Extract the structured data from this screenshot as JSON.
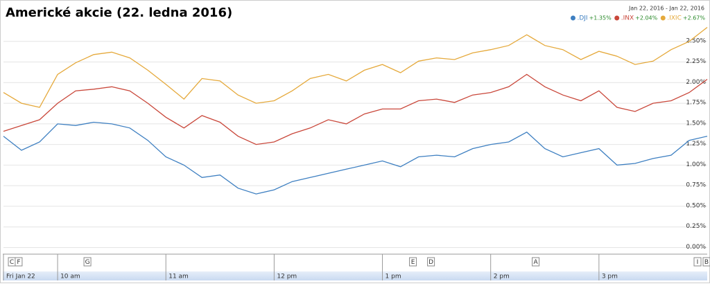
{
  "chart_data": {
    "type": "line",
    "title": "Americké akcie (22. ledna 2016)",
    "date_range": "Jan 22, 2016  -  Jan 22, 2016",
    "x": [
      570,
      580,
      590,
      600,
      610,
      620,
      630,
      640,
      650,
      660,
      670,
      680,
      690,
      700,
      710,
      720,
      730,
      740,
      750,
      760,
      770,
      780,
      790,
      800,
      810,
      820,
      830,
      840,
      850,
      860,
      870,
      880,
      890,
      900,
      910,
      920,
      930,
      940,
      950,
      960
    ],
    "xlim": [
      570,
      960
    ],
    "xticks": [
      {
        "value": 570,
        "label": "Fri Jan 22"
      },
      {
        "value": 600,
        "label": "10 am"
      },
      {
        "value": 660,
        "label": "11 am"
      },
      {
        "value": 720,
        "label": "12 pm"
      },
      {
        "value": 780,
        "label": "1 pm"
      },
      {
        "value": 840,
        "label": "2 pm"
      },
      {
        "value": 900,
        "label": "3 pm"
      }
    ],
    "ylim": [
      -0.08,
      2.75
    ],
    "yticks": [
      {
        "value": 0,
        "label": "0.00%"
      },
      {
        "value": 0.25,
        "label": "0.25%"
      },
      {
        "value": 0.5,
        "label": "0.50%"
      },
      {
        "value": 0.75,
        "label": "0.75%"
      },
      {
        "value": 1,
        "label": "1.00%"
      },
      {
        "value": 1.25,
        "label": "1.25%"
      },
      {
        "value": 1.5,
        "label": "1.50%"
      },
      {
        "value": 1.75,
        "label": "1.75%"
      },
      {
        "value": 2,
        "label": "2.00%"
      },
      {
        "value": 2.25,
        "label": "2.25%"
      },
      {
        "value": 2.5,
        "label": "2.50%"
      }
    ],
    "grid": true,
    "series": [
      {
        "name": ".DJI",
        "change": "+1.35%",
        "color": "#3d7fc1",
        "values": [
          1.35,
          1.18,
          1.28,
          1.5,
          1.48,
          1.52,
          1.5,
          1.45,
          1.3,
          1.1,
          1.0,
          0.85,
          0.88,
          0.72,
          0.65,
          0.7,
          0.8,
          0.85,
          0.9,
          0.95,
          1.0,
          1.05,
          0.98,
          1.1,
          1.12,
          1.1,
          1.2,
          1.25,
          1.28,
          1.4,
          1.2,
          1.1,
          1.15,
          1.2,
          1.0,
          1.02,
          1.08,
          1.12,
          1.3,
          1.35
        ]
      },
      {
        "name": ".INX",
        "change": "+2.04%",
        "color": "#c9473a",
        "values": [
          1.41,
          1.48,
          1.55,
          1.75,
          1.9,
          1.92,
          1.95,
          1.9,
          1.75,
          1.58,
          1.45,
          1.6,
          1.52,
          1.35,
          1.25,
          1.28,
          1.38,
          1.45,
          1.55,
          1.5,
          1.62,
          1.68,
          1.68,
          1.78,
          1.8,
          1.76,
          1.85,
          1.88,
          1.95,
          2.1,
          1.95,
          1.85,
          1.78,
          1.9,
          1.7,
          1.65,
          1.75,
          1.78,
          1.88,
          2.04
        ]
      },
      {
        "name": ".IXIC",
        "change": "+2.67%",
        "color": "#e5a93b",
        "values": [
          1.88,
          1.75,
          1.7,
          2.1,
          2.24,
          2.34,
          2.37,
          2.3,
          2.15,
          1.98,
          1.8,
          2.05,
          2.02,
          1.85,
          1.75,
          1.78,
          1.9,
          2.05,
          2.1,
          2.02,
          2.15,
          2.22,
          2.12,
          2.26,
          2.3,
          2.28,
          2.36,
          2.4,
          2.45,
          2.58,
          2.45,
          2.4,
          2.28,
          2.38,
          2.32,
          2.22,
          2.26,
          2.4,
          2.5,
          2.67
        ]
      }
    ],
    "flags": [
      {
        "label": "C",
        "x": 572.7
      },
      {
        "label": "F",
        "x": 576.5
      },
      {
        "label": "G",
        "x": 614.6
      },
      {
        "label": "E",
        "x": 795
      },
      {
        "label": "D",
        "x": 805
      },
      {
        "label": "A",
        "x": 863
      },
      {
        "label": "I",
        "x": 952.7
      },
      {
        "label": "B",
        "x": 957.7
      }
    ]
  }
}
